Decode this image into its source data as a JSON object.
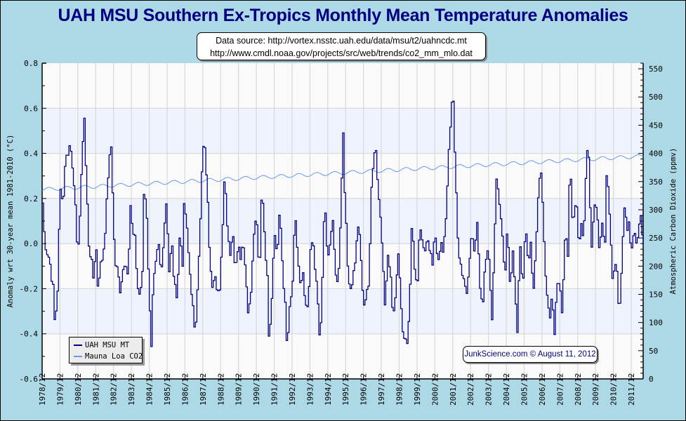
{
  "chart_data": {
    "type": "line",
    "title": "UAH MSU Southern Ex-Tropics Monthly Mean Temperature Anomalies",
    "source_lines": [
      "Data source: http://vortex.nsstc.uah.edu/data/msu/t2/uahncdc.mt",
      "http://www.cmdl.noaa.gov/projects/src/web/trends/co2_mm_mlo.dat"
    ],
    "credit": "JunkScience.com © August 11, 2012",
    "ylabel": "Anomaly wrt 30-year mean 1981-2010 (°C)",
    "y2label": "Atmospheric Carbon Dioxide (ppmv)",
    "ylim": [
      -0.6,
      0.8
    ],
    "y2lim": [
      0,
      560
    ],
    "yticks": [
      "0.8",
      "0.6",
      "0.4",
      "0.2",
      "0.0",
      "-0.2",
      "-0.4",
      "-0.6"
    ],
    "y2ticks": [
      "550",
      "500",
      "450",
      "400",
      "350",
      "300",
      "250",
      "200",
      "150",
      "100",
      "50",
      "0"
    ],
    "xticks": [
      "1978/12",
      "1979/12",
      "1980/12",
      "1981/12",
      "1982/12",
      "1983/12",
      "1984/12",
      "1985/12",
      "1986/12",
      "1987/12",
      "1988/12",
      "1989/12",
      "1990/12",
      "1991/12",
      "1992/12",
      "1993/12",
      "1994/12",
      "1995/12",
      "1996/12",
      "1997/12",
      "1998/12",
      "1999/12",
      "2000/12",
      "2001/12",
      "2002/12",
      "2003/12",
      "2004/12",
      "2005/12",
      "2006/12",
      "2007/12",
      "2008/12",
      "2009/12",
      "2010/12",
      "2011/12"
    ],
    "x_start": "1978/12",
    "x_end": "2012/07",
    "grid": true,
    "legend_position": "bottom-left",
    "series": [
      {
        "name": "UAH MSU MT",
        "color": "#000080",
        "axis": "left",
        "keypoints": [
          [
            1978.92,
            0.18
          ],
          [
            1979.0,
            0.05
          ],
          [
            1979.1,
            -0.02
          ],
          [
            1979.3,
            -0.07
          ],
          [
            1979.5,
            -0.2
          ],
          [
            1979.6,
            -0.37
          ],
          [
            1979.75,
            -0.2
          ],
          [
            1979.85,
            0.1
          ],
          [
            1979.95,
            0.3
          ],
          [
            1980.05,
            0.14
          ],
          [
            1980.15,
            0.35
          ],
          [
            1980.3,
            0.4
          ],
          [
            1980.45,
            0.44
          ],
          [
            1980.55,
            0.38
          ],
          [
            1980.7,
            0.25
          ],
          [
            1980.85,
            -0.05
          ],
          [
            1980.95,
            0.05
          ],
          [
            1981.05,
            0.2
          ],
          [
            1981.15,
            0.45
          ],
          [
            1981.25,
            0.56
          ],
          [
            1981.35,
            0.3
          ],
          [
            1981.5,
            0.0
          ],
          [
            1981.6,
            -0.05
          ],
          [
            1981.75,
            -0.15
          ],
          [
            1981.9,
            0.0
          ],
          [
            1982.0,
            -0.18
          ],
          [
            1982.15,
            -0.1
          ],
          [
            1982.3,
            -0.05
          ],
          [
            1982.45,
            0.1
          ],
          [
            1982.6,
            0.33
          ],
          [
            1982.75,
            0.43
          ],
          [
            1982.85,
            0.2
          ],
          [
            1982.95,
            -0.08
          ],
          [
            1983.1,
            -0.12
          ],
          [
            1983.25,
            -0.2
          ],
          [
            1983.4,
            -0.12
          ],
          [
            1983.55,
            -0.06
          ],
          [
            1983.7,
            -0.15
          ],
          [
            1983.85,
            0.2
          ],
          [
            1983.95,
            0.0
          ],
          [
            1984.05,
            0.1
          ],
          [
            1984.2,
            -0.17
          ],
          [
            1984.35,
            -0.25
          ],
          [
            1984.5,
            -0.12
          ],
          [
            1984.6,
            0.3
          ],
          [
            1984.75,
            0.1
          ],
          [
            1984.9,
            -0.25
          ],
          [
            1985.0,
            -0.47
          ],
          [
            1985.1,
            -0.2
          ],
          [
            1985.25,
            -0.1
          ],
          [
            1985.4,
            0.0
          ],
          [
            1985.55,
            -0.15
          ],
          [
            1985.7,
            0.05
          ],
          [
            1985.85,
            0.2
          ],
          [
            1986.0,
            -0.12
          ],
          [
            1986.15,
            0.0
          ],
          [
            1986.3,
            -0.2
          ],
          [
            1986.45,
            -0.22
          ],
          [
            1986.6,
            0.05
          ],
          [
            1986.75,
            -0.08
          ],
          [
            1986.85,
            0.2
          ],
          [
            1987.0,
            0.05
          ],
          [
            1987.15,
            -0.12
          ],
          [
            1987.3,
            -0.25
          ],
          [
            1987.45,
            -0.43
          ],
          [
            1987.6,
            -0.15
          ],
          [
            1987.75,
            0.1
          ],
          [
            1987.85,
            0.35
          ],
          [
            1987.95,
            0.46
          ],
          [
            1988.1,
            0.3
          ],
          [
            1988.25,
            0.0
          ],
          [
            1988.4,
            -0.18
          ],
          [
            1988.55,
            -0.12
          ],
          [
            1988.7,
            -0.25
          ],
          [
            1988.85,
            -0.18
          ],
          [
            1988.95,
            0.0
          ],
          [
            1989.1,
            0.32
          ],
          [
            1989.25,
            0.1
          ],
          [
            1989.4,
            -0.05
          ],
          [
            1989.55,
            0.05
          ],
          [
            1989.7,
            -0.1
          ],
          [
            1989.85,
            0.0
          ],
          [
            1990.0,
            -0.05
          ],
          [
            1990.15,
            0.02
          ],
          [
            1990.3,
            -0.15
          ],
          [
            1990.45,
            -0.32
          ],
          [
            1990.6,
            -0.2
          ],
          [
            1990.75,
            0.05
          ],
          [
            1990.9,
            0.1
          ],
          [
            1991.05,
            -0.15
          ],
          [
            1991.2,
            0.3
          ],
          [
            1991.35,
            0.0
          ],
          [
            1991.5,
            -0.12
          ],
          [
            1991.6,
            -0.45
          ],
          [
            1991.75,
            -0.22
          ],
          [
            1991.9,
            0.05
          ],
          [
            1992.05,
            -0.05
          ],
          [
            1992.2,
            0.15
          ],
          [
            1992.35,
            -0.1
          ],
          [
            1992.5,
            -0.28
          ],
          [
            1992.6,
            -0.47
          ],
          [
            1992.75,
            -0.3
          ],
          [
            1992.9,
            -0.2
          ],
          [
            1993.05,
            0.12
          ],
          [
            1993.2,
            -0.05
          ],
          [
            1993.35,
            -0.2
          ],
          [
            1993.5,
            -0.15
          ],
          [
            1993.65,
            -0.3
          ],
          [
            1993.8,
            -0.28
          ],
          [
            1993.95,
            0.05
          ],
          [
            1994.05,
            0.0
          ],
          [
            1994.2,
            -0.15
          ],
          [
            1994.3,
            -0.2
          ],
          [
            1994.45,
            -0.48
          ],
          [
            1994.55,
            -0.25
          ],
          [
            1994.7,
            0.2
          ],
          [
            1994.85,
            -0.05
          ],
          [
            1995.0,
            0.0
          ],
          [
            1995.15,
            0.1
          ],
          [
            1995.3,
            -0.1
          ],
          [
            1995.45,
            -0.2
          ],
          [
            1995.6,
            0.12
          ],
          [
            1995.75,
            0.5
          ],
          [
            1995.85,
            0.2
          ],
          [
            1996.0,
            -0.1
          ],
          [
            1996.15,
            -0.2
          ],
          [
            1996.3,
            -0.15
          ],
          [
            1996.45,
            -0.05
          ],
          [
            1996.6,
            0.1
          ],
          [
            1996.75,
            -0.08
          ],
          [
            1996.9,
            -0.3
          ],
          [
            1997.05,
            -0.2
          ],
          [
            1997.2,
            -0.18
          ],
          [
            1997.35,
            0.3
          ],
          [
            1997.45,
            0.38
          ],
          [
            1997.55,
            0.46
          ],
          [
            1997.7,
            0.25
          ],
          [
            1997.85,
            0.1
          ],
          [
            1998.0,
            -0.1
          ],
          [
            1998.1,
            -0.28
          ],
          [
            1998.25,
            -0.05
          ],
          [
            1998.4,
            -0.15
          ],
          [
            1998.55,
            -0.32
          ],
          [
            1998.7,
            -0.2
          ],
          [
            1998.85,
            0.0
          ],
          [
            1999.0,
            -0.3
          ],
          [
            1999.1,
            -0.43
          ],
          [
            1999.2,
            -0.38
          ],
          [
            1999.3,
            -0.47
          ],
          [
            1999.45,
            -0.3
          ],
          [
            1999.6,
            0.1
          ],
          [
            1999.75,
            -0.1
          ],
          [
            1999.9,
            -0.22
          ],
          [
            2000.05,
            0.1
          ],
          [
            2000.15,
            0.0
          ],
          [
            2000.3,
            -0.05
          ],
          [
            2000.45,
            0.05
          ],
          [
            2000.6,
            -0.02
          ],
          [
            2000.75,
            -0.1
          ],
          [
            2000.9,
            0.05
          ],
          [
            2001.05,
            -0.08
          ],
          [
            2001.2,
            0.0
          ],
          [
            2001.35,
            -0.05
          ],
          [
            2001.5,
            0.1
          ],
          [
            2001.6,
            0.3
          ],
          [
            2001.7,
            0.47
          ],
          [
            2001.8,
            0.6
          ],
          [
            2001.9,
            0.65
          ],
          [
            2002.0,
            0.4
          ],
          [
            2002.1,
            0.2
          ],
          [
            2002.2,
            -0.05
          ],
          [
            2002.35,
            -0.1
          ],
          [
            2002.5,
            -0.15
          ],
          [
            2002.65,
            -0.25
          ],
          [
            2002.8,
            -0.1
          ],
          [
            2002.95,
            0.05
          ],
          [
            2003.1,
            -0.02
          ],
          [
            2003.25,
            0.1
          ],
          [
            2003.4,
            -0.2
          ],
          [
            2003.55,
            -0.3
          ],
          [
            2003.7,
            -0.1
          ],
          [
            2003.85,
            0.0
          ],
          [
            2004.0,
            -0.2
          ],
          [
            2004.1,
            -0.35
          ],
          [
            2004.2,
            0.0
          ],
          [
            2004.35,
            0.33
          ],
          [
            2004.5,
            0.15
          ],
          [
            2004.65,
            0.05
          ],
          [
            2004.8,
            -0.15
          ],
          [
            2004.95,
            0.1
          ],
          [
            2005.1,
            -0.2
          ],
          [
            2005.25,
            -0.02
          ],
          [
            2005.4,
            -0.25
          ],
          [
            2005.5,
            -0.38
          ],
          [
            2005.65,
            0.0
          ],
          [
            2005.8,
            -0.2
          ],
          [
            2005.95,
            0.1
          ],
          [
            2006.1,
            -0.07
          ],
          [
            2006.25,
            0.0
          ],
          [
            2006.4,
            -0.2
          ],
          [
            2006.55,
            0.0
          ],
          [
            2006.7,
            0.25
          ],
          [
            2006.85,
            0.3
          ],
          [
            2006.95,
            0.15
          ],
          [
            2007.1,
            -0.2
          ],
          [
            2007.2,
            -0.28
          ],
          [
            2007.35,
            -0.35
          ],
          [
            2007.45,
            -0.2
          ],
          [
            2007.55,
            -0.43
          ],
          [
            2007.7,
            -0.2
          ],
          [
            2007.85,
            -0.15
          ],
          [
            2008.0,
            -0.3
          ],
          [
            2008.1,
            -0.12
          ],
          [
            2008.2,
            0.05
          ],
          [
            2008.35,
            -0.05
          ],
          [
            2008.45,
            0.4
          ],
          [
            2008.55,
            0.15
          ],
          [
            2008.65,
            0.12
          ],
          [
            2008.8,
            0.22
          ],
          [
            2008.95,
            0.0
          ],
          [
            2009.1,
            0.1
          ],
          [
            2009.2,
            0.0
          ],
          [
            2009.35,
            0.3
          ],
          [
            2009.45,
            0.5
          ],
          [
            2009.55,
            0.28
          ],
          [
            2009.65,
            -0.02
          ],
          [
            2009.8,
            0.18
          ],
          [
            2009.95,
            0.18
          ],
          [
            2010.1,
            -0.02
          ],
          [
            2010.25,
            0.1
          ],
          [
            2010.4,
            -0.05
          ],
          [
            2010.5,
            0.3
          ],
          [
            2010.6,
            0.22
          ],
          [
            2010.75,
            0.0
          ],
          [
            2010.85,
            -0.2
          ],
          [
            2010.95,
            -0.08
          ],
          [
            2011.05,
            -0.08
          ],
          [
            2011.15,
            -0.25
          ],
          [
            2011.25,
            -0.27
          ],
          [
            2011.35,
            -0.1
          ],
          [
            2011.45,
            0.1
          ],
          [
            2011.55,
            0.18
          ],
          [
            2011.65,
            0.05
          ],
          [
            2011.75,
            0.1
          ],
          [
            2011.85,
            0.0
          ],
          [
            2011.95,
            -0.05
          ],
          [
            2012.05,
            0.1
          ],
          [
            2012.15,
            -0.02
          ],
          [
            2012.3,
            0.08
          ],
          [
            2012.45,
            0.12
          ],
          [
            2012.55,
            0.0
          ]
        ]
      },
      {
        "name": "Mauna Loa CO2",
        "color": "#6699ee",
        "axis": "right",
        "trend_start_ppmv": 336,
        "trend_end_ppmv": 395,
        "seasonal_amplitude_ppmv": 3.2
      }
    ]
  }
}
